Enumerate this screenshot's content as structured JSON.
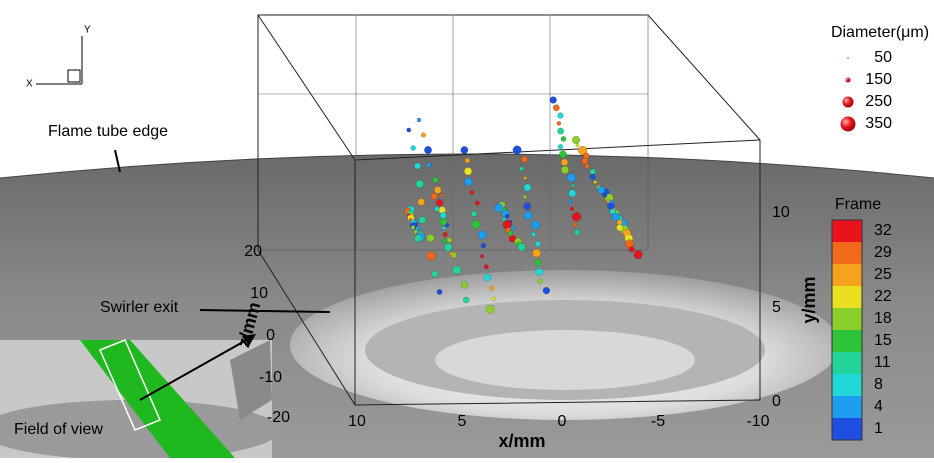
{
  "triad": {
    "x": "X",
    "y": "Y"
  },
  "annotations": {
    "flame_tube": "Flame tube edge",
    "swirler": "Swirler exit",
    "field_of_view": "Field of view"
  },
  "axes": {
    "x": {
      "label": "x/mm",
      "ticks": [
        "10",
        "5",
        "0",
        "-5",
        "-10"
      ]
    },
    "y": {
      "label": "y/mm",
      "ticks": [
        "0",
        "5",
        "10"
      ]
    },
    "z": {
      "label": "z/mm",
      "ticks": [
        "20",
        "10",
        "0",
        "-10",
        "-20"
      ]
    }
  },
  "size_legend": {
    "title": "Diameter(μm)",
    "entries": [
      "50",
      "150",
      "250",
      "350"
    ]
  },
  "color_legend": {
    "title": "Frame",
    "entries": [
      "32",
      "29",
      "25",
      "22",
      "18",
      "15",
      "11",
      "8",
      "4",
      "1"
    ],
    "colors": [
      "#e8141c",
      "#f06a1a",
      "#f5a21c",
      "#e8e020",
      "#8ccf2a",
      "#2ec43a",
      "#22d49a",
      "#20d8d8",
      "#1e9ef0",
      "#1e4fe0"
    ]
  }
}
